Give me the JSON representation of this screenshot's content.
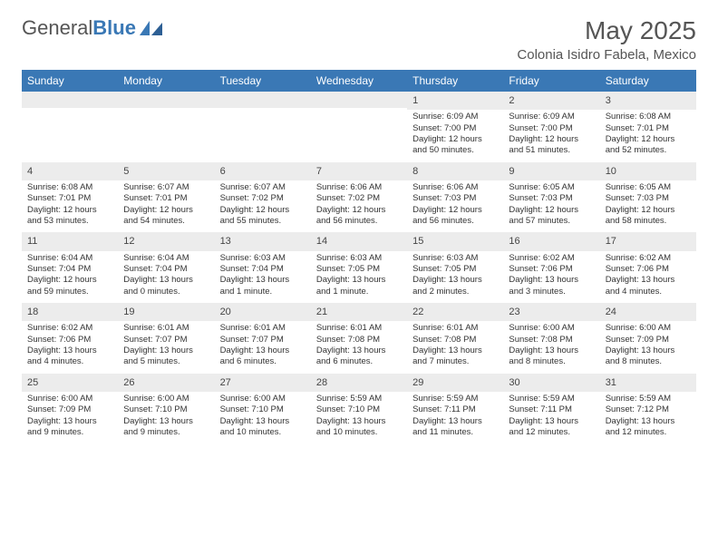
{
  "logo": {
    "text1": "General",
    "text2": "Blue"
  },
  "header": {
    "month": "May 2025",
    "location": "Colonia Isidro Fabela, Mexico"
  },
  "colors": {
    "brand": "#3a78b5",
    "headerbg": "#3a78b5",
    "daynum_bg": "#ececec",
    "text": "#333333",
    "muted": "#555555"
  },
  "layout": {
    "columns": 7,
    "rows": 5,
    "day_header_fontsize": 12,
    "cell_fontsize": 9.5
  },
  "day_headers": [
    "Sunday",
    "Monday",
    "Tuesday",
    "Wednesday",
    "Thursday",
    "Friday",
    "Saturday"
  ],
  "weeks": [
    [
      {
        "num": "",
        "sunrise": "",
        "sunset": "",
        "daylight": ""
      },
      {
        "num": "",
        "sunrise": "",
        "sunset": "",
        "daylight": ""
      },
      {
        "num": "",
        "sunrise": "",
        "sunset": "",
        "daylight": ""
      },
      {
        "num": "",
        "sunrise": "",
        "sunset": "",
        "daylight": ""
      },
      {
        "num": "1",
        "sunrise": "Sunrise: 6:09 AM",
        "sunset": "Sunset: 7:00 PM",
        "daylight": "Daylight: 12 hours and 50 minutes."
      },
      {
        "num": "2",
        "sunrise": "Sunrise: 6:09 AM",
        "sunset": "Sunset: 7:00 PM",
        "daylight": "Daylight: 12 hours and 51 minutes."
      },
      {
        "num": "3",
        "sunrise": "Sunrise: 6:08 AM",
        "sunset": "Sunset: 7:01 PM",
        "daylight": "Daylight: 12 hours and 52 minutes."
      }
    ],
    [
      {
        "num": "4",
        "sunrise": "Sunrise: 6:08 AM",
        "sunset": "Sunset: 7:01 PM",
        "daylight": "Daylight: 12 hours and 53 minutes."
      },
      {
        "num": "5",
        "sunrise": "Sunrise: 6:07 AM",
        "sunset": "Sunset: 7:01 PM",
        "daylight": "Daylight: 12 hours and 54 minutes."
      },
      {
        "num": "6",
        "sunrise": "Sunrise: 6:07 AM",
        "sunset": "Sunset: 7:02 PM",
        "daylight": "Daylight: 12 hours and 55 minutes."
      },
      {
        "num": "7",
        "sunrise": "Sunrise: 6:06 AM",
        "sunset": "Sunset: 7:02 PM",
        "daylight": "Daylight: 12 hours and 56 minutes."
      },
      {
        "num": "8",
        "sunrise": "Sunrise: 6:06 AM",
        "sunset": "Sunset: 7:03 PM",
        "daylight": "Daylight: 12 hours and 56 minutes."
      },
      {
        "num": "9",
        "sunrise": "Sunrise: 6:05 AM",
        "sunset": "Sunset: 7:03 PM",
        "daylight": "Daylight: 12 hours and 57 minutes."
      },
      {
        "num": "10",
        "sunrise": "Sunrise: 6:05 AM",
        "sunset": "Sunset: 7:03 PM",
        "daylight": "Daylight: 12 hours and 58 minutes."
      }
    ],
    [
      {
        "num": "11",
        "sunrise": "Sunrise: 6:04 AM",
        "sunset": "Sunset: 7:04 PM",
        "daylight": "Daylight: 12 hours and 59 minutes."
      },
      {
        "num": "12",
        "sunrise": "Sunrise: 6:04 AM",
        "sunset": "Sunset: 7:04 PM",
        "daylight": "Daylight: 13 hours and 0 minutes."
      },
      {
        "num": "13",
        "sunrise": "Sunrise: 6:03 AM",
        "sunset": "Sunset: 7:04 PM",
        "daylight": "Daylight: 13 hours and 1 minute."
      },
      {
        "num": "14",
        "sunrise": "Sunrise: 6:03 AM",
        "sunset": "Sunset: 7:05 PM",
        "daylight": "Daylight: 13 hours and 1 minute."
      },
      {
        "num": "15",
        "sunrise": "Sunrise: 6:03 AM",
        "sunset": "Sunset: 7:05 PM",
        "daylight": "Daylight: 13 hours and 2 minutes."
      },
      {
        "num": "16",
        "sunrise": "Sunrise: 6:02 AM",
        "sunset": "Sunset: 7:06 PM",
        "daylight": "Daylight: 13 hours and 3 minutes."
      },
      {
        "num": "17",
        "sunrise": "Sunrise: 6:02 AM",
        "sunset": "Sunset: 7:06 PM",
        "daylight": "Daylight: 13 hours and 4 minutes."
      }
    ],
    [
      {
        "num": "18",
        "sunrise": "Sunrise: 6:02 AM",
        "sunset": "Sunset: 7:06 PM",
        "daylight": "Daylight: 13 hours and 4 minutes."
      },
      {
        "num": "19",
        "sunrise": "Sunrise: 6:01 AM",
        "sunset": "Sunset: 7:07 PM",
        "daylight": "Daylight: 13 hours and 5 minutes."
      },
      {
        "num": "20",
        "sunrise": "Sunrise: 6:01 AM",
        "sunset": "Sunset: 7:07 PM",
        "daylight": "Daylight: 13 hours and 6 minutes."
      },
      {
        "num": "21",
        "sunrise": "Sunrise: 6:01 AM",
        "sunset": "Sunset: 7:08 PM",
        "daylight": "Daylight: 13 hours and 6 minutes."
      },
      {
        "num": "22",
        "sunrise": "Sunrise: 6:01 AM",
        "sunset": "Sunset: 7:08 PM",
        "daylight": "Daylight: 13 hours and 7 minutes."
      },
      {
        "num": "23",
        "sunrise": "Sunrise: 6:00 AM",
        "sunset": "Sunset: 7:08 PM",
        "daylight": "Daylight: 13 hours and 8 minutes."
      },
      {
        "num": "24",
        "sunrise": "Sunrise: 6:00 AM",
        "sunset": "Sunset: 7:09 PM",
        "daylight": "Daylight: 13 hours and 8 minutes."
      }
    ],
    [
      {
        "num": "25",
        "sunrise": "Sunrise: 6:00 AM",
        "sunset": "Sunset: 7:09 PM",
        "daylight": "Daylight: 13 hours and 9 minutes."
      },
      {
        "num": "26",
        "sunrise": "Sunrise: 6:00 AM",
        "sunset": "Sunset: 7:10 PM",
        "daylight": "Daylight: 13 hours and 9 minutes."
      },
      {
        "num": "27",
        "sunrise": "Sunrise: 6:00 AM",
        "sunset": "Sunset: 7:10 PM",
        "daylight": "Daylight: 13 hours and 10 minutes."
      },
      {
        "num": "28",
        "sunrise": "Sunrise: 5:59 AM",
        "sunset": "Sunset: 7:10 PM",
        "daylight": "Daylight: 13 hours and 10 minutes."
      },
      {
        "num": "29",
        "sunrise": "Sunrise: 5:59 AM",
        "sunset": "Sunset: 7:11 PM",
        "daylight": "Daylight: 13 hours and 11 minutes."
      },
      {
        "num": "30",
        "sunrise": "Sunrise: 5:59 AM",
        "sunset": "Sunset: 7:11 PM",
        "daylight": "Daylight: 13 hours and 12 minutes."
      },
      {
        "num": "31",
        "sunrise": "Sunrise: 5:59 AM",
        "sunset": "Sunset: 7:12 PM",
        "daylight": "Daylight: 13 hours and 12 minutes."
      }
    ]
  ]
}
